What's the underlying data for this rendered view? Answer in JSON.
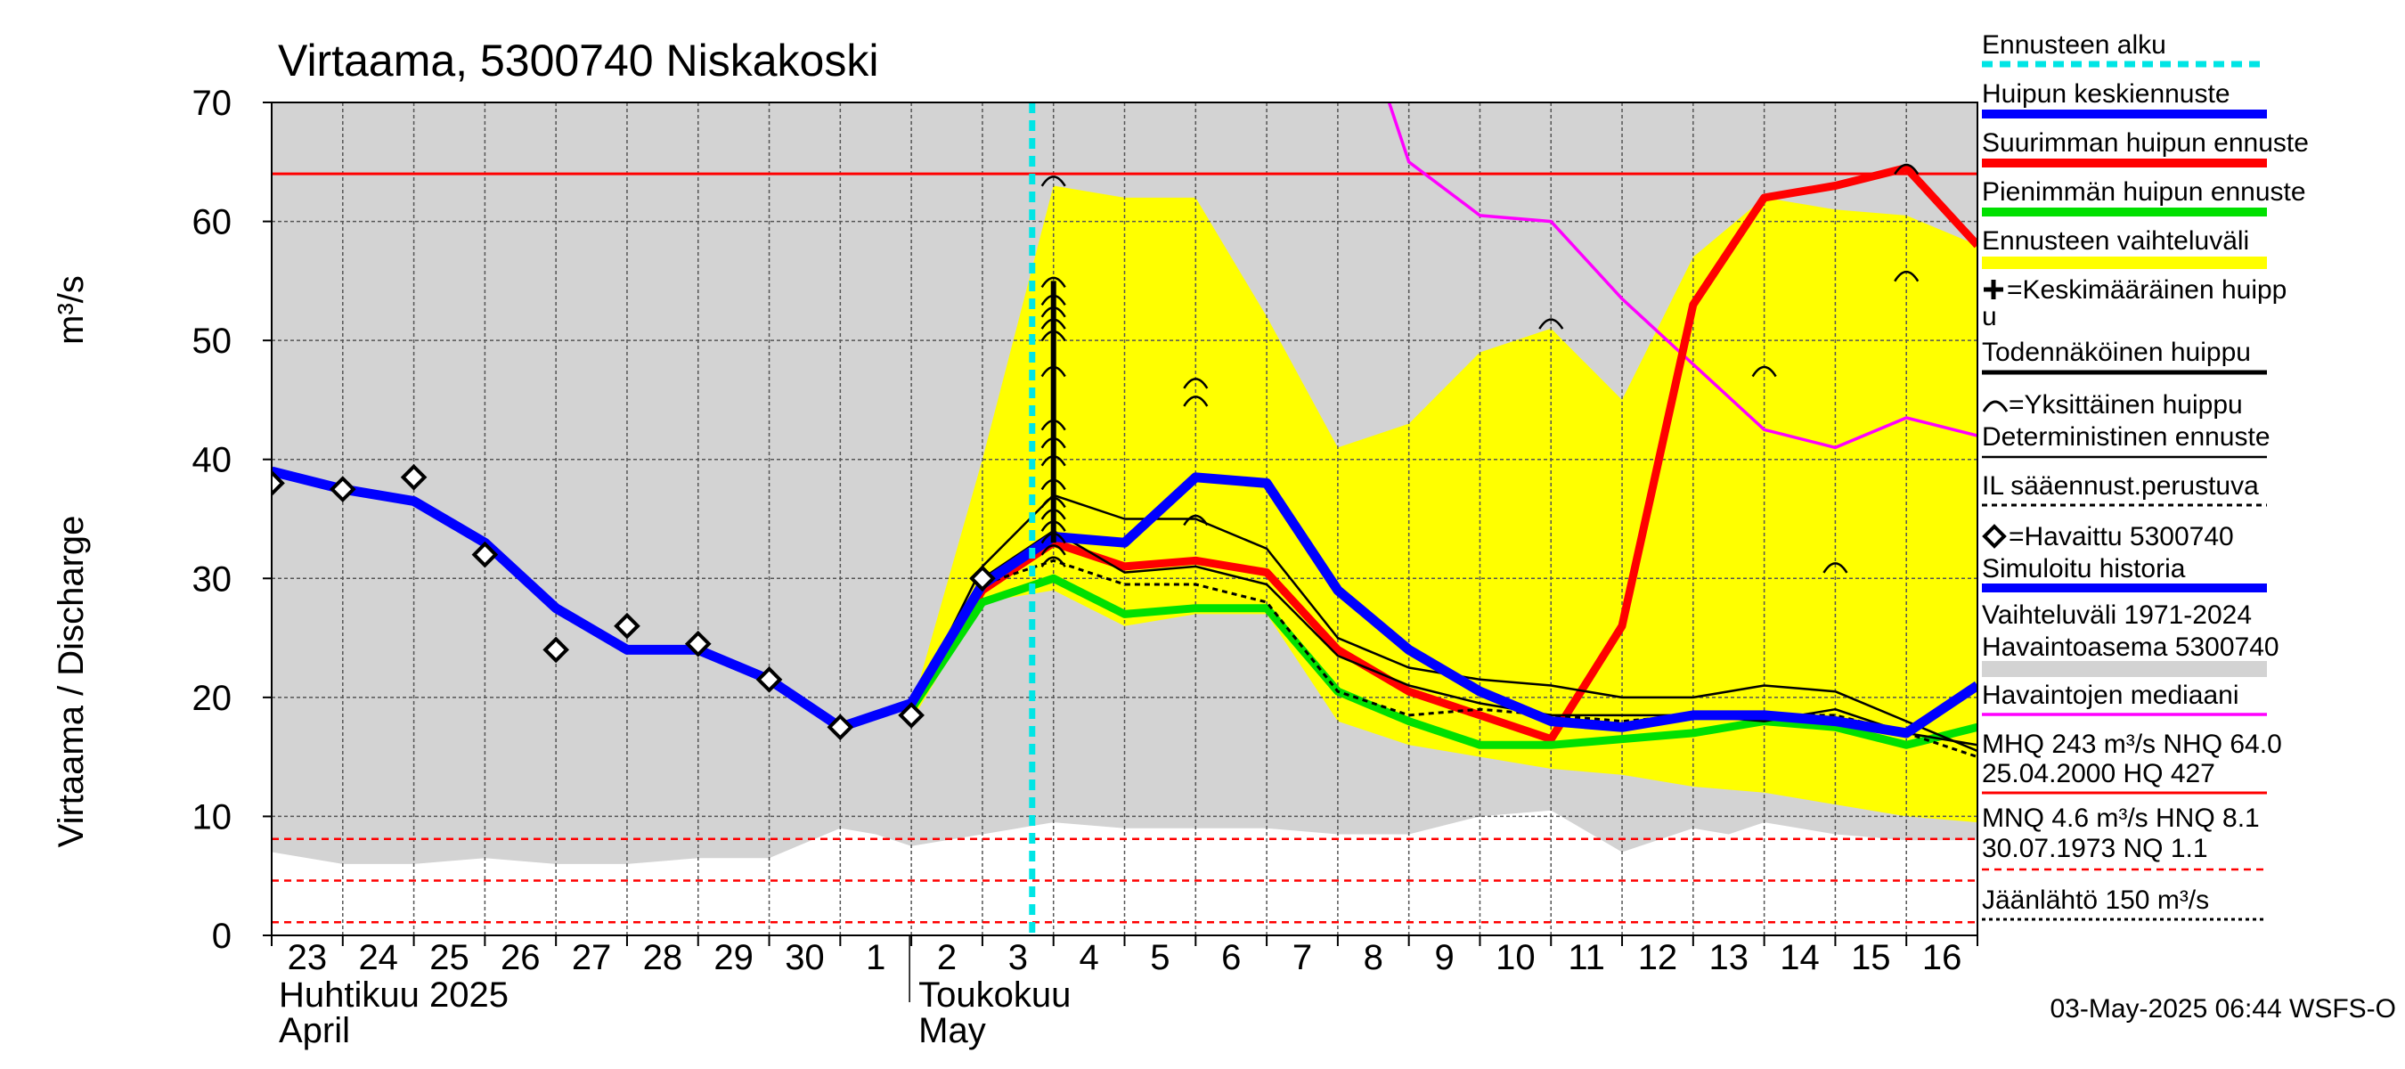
{
  "chart_data": {
    "type": "line",
    "title": "Virtaama, 5300740 Niskakoski",
    "ylabel": "Virtaama / Discharge",
    "yunit": "m³/s",
    "ylim": [
      0,
      70
    ],
    "yticks": [
      "0",
      "10",
      "20",
      "30",
      "40",
      "50",
      "60",
      "70"
    ],
    "x_start": "2025-04-23",
    "x_end": "2025-05-16",
    "xticks": [
      "23",
      "24",
      "25",
      "26",
      "27",
      "28",
      "29",
      "30",
      "1",
      "2",
      "3",
      "4",
      "5",
      "6",
      "7",
      "8",
      "9",
      "10",
      "11",
      "12",
      "13",
      "14",
      "15",
      "16"
    ],
    "month_labels": [
      {
        "fi": "Huhtikuu  2025",
        "en": "April",
        "start": 0
      },
      {
        "fi": "Toukokuu",
        "en": "May",
        "start": 9
      }
    ],
    "grid": true,
    "legend_position": "right",
    "forecast_start": 10.7,
    "colors": {
      "history_band": "#d3d3d3",
      "forecast_band": "#ffff00",
      "mean_peak": "#0000ff",
      "max_peak": "#ff0000",
      "min_peak": "#00e000",
      "median": "#ff00ff",
      "forecast_start": "#00e5e5",
      "threshold": "#ff0000"
    },
    "history_band": {
      "x": [
        0,
        1,
        2,
        3,
        4,
        5,
        6,
        7,
        8,
        8.5,
        9,
        9.5,
        10,
        11,
        12,
        13,
        14,
        15,
        16,
        17,
        18,
        19,
        20,
        20.5,
        21,
        22,
        23,
        23.5,
        24
      ],
      "lower": [
        7,
        6,
        6,
        6.5,
        6,
        6,
        6.5,
        6.5,
        9,
        8.5,
        7.5,
        8,
        8.5,
        9.5,
        9,
        9,
        9,
        8.5,
        8.5,
        10,
        10.5,
        7,
        9,
        8.5,
        9.5,
        8.5,
        8,
        8,
        8
      ]
    },
    "forecast_band": {
      "x": [
        9,
        10,
        11,
        12,
        13,
        14,
        15,
        16,
        17,
        18,
        19,
        20,
        21,
        22,
        23,
        24
      ],
      "upper": [
        19,
        40,
        63,
        62,
        62,
        52,
        41,
        43,
        49,
        51,
        45,
        57,
        62,
        61,
        60.5,
        58
      ],
      "lower": [
        18,
        28,
        29,
        26,
        27,
        27,
        18,
        16,
        15,
        14,
        13.5,
        12.5,
        12,
        11,
        10,
        9.5
      ]
    },
    "median": {
      "x": [
        15.5,
        16,
        17,
        18,
        19,
        20,
        21,
        22,
        23,
        24
      ],
      "values": [
        74,
        65,
        60.5,
        60,
        53.5,
        48,
        42.5,
        41,
        43.5,
        42
      ]
    },
    "historical_max_line": 64.0,
    "threshold_lines": [
      8.1,
      4.6,
      1.1
    ],
    "simulated_history": {
      "x": [
        0,
        1,
        2,
        3,
        4,
        5,
        6,
        7,
        8,
        9,
        10,
        11,
        12,
        13,
        14,
        15,
        16,
        17,
        18,
        19,
        20,
        21,
        22,
        23,
        24
      ],
      "values": [
        39,
        37.5,
        36.5,
        33,
        27.5,
        24,
        24,
        21.5,
        17.5,
        19.5,
        29.5,
        33.5,
        33,
        38.5,
        38,
        29,
        24,
        20.5,
        18,
        17.5,
        18.5,
        18.5,
        18,
        17,
        21
      ]
    },
    "observed": {
      "x": [
        0,
        1,
        2,
        3,
        4,
        5,
        6,
        7,
        8,
        9,
        10
      ],
      "values": [
        38,
        37.5,
        38.5,
        32,
        24,
        26,
        24.5,
        21.5,
        17.5,
        18.5,
        30
      ]
    },
    "series": [
      {
        "name": "Suurimman huipun ennuste",
        "x": [
          9,
          10,
          11,
          12,
          13,
          14,
          15,
          16,
          17,
          18,
          19,
          20,
          21,
          22,
          23,
          24
        ],
        "values": [
          19,
          29,
          33,
          31,
          31.5,
          30.5,
          24,
          20.5,
          18.5,
          16.5,
          26,
          53,
          62,
          63,
          64.5,
          58
        ]
      },
      {
        "name": "Pienimmän huipun ennuste",
        "x": [
          9,
          10,
          11,
          12,
          13,
          14,
          15,
          16,
          17,
          18,
          19,
          20,
          21,
          22,
          23,
          24
        ],
        "values": [
          19,
          28,
          30,
          27,
          27.5,
          27.5,
          20.5,
          18,
          16,
          16,
          16.5,
          17,
          18,
          17.5,
          16,
          17.5
        ]
      },
      {
        "name": "Todennäköinen huippu",
        "x": [
          9,
          10,
          11,
          12,
          13,
          14,
          15,
          16,
          17,
          18,
          19,
          20,
          21,
          22,
          23,
          24
        ],
        "values": [
          19,
          31,
          37,
          35,
          35,
          32.5,
          25,
          22.5,
          21.5,
          21,
          20,
          20,
          21,
          20.5,
          18,
          15.5
        ]
      },
      {
        "name": "Deterministinen ennuste",
        "x": [
          9,
          10,
          11,
          12,
          13,
          14,
          15,
          16,
          17,
          18,
          19,
          20,
          21,
          22,
          23,
          24
        ],
        "values": [
          19,
          30,
          34,
          30.5,
          31,
          29.5,
          23.5,
          21,
          19.5,
          18.5,
          18.5,
          18.5,
          18,
          19,
          17,
          16
        ]
      },
      {
        "name": "IL sääennust.perustuva",
        "x": [
          9,
          10,
          11,
          12,
          13,
          14,
          15,
          16,
          17,
          18,
          19,
          20,
          21,
          22,
          23,
          24
        ],
        "values": [
          19,
          29.5,
          31.5,
          29.5,
          29.5,
          28,
          20.5,
          18.5,
          19,
          18.5,
          18,
          18.5,
          18.5,
          18.5,
          17,
          15
        ]
      }
    ],
    "individual_peaks": [
      {
        "x": 11,
        "values": [
          31.5,
          32.5,
          33.5,
          34.5,
          35.5,
          36.5,
          38,
          40,
          41.5,
          43,
          47.5,
          50.5,
          51.5,
          52.5,
          53.5,
          55,
          63.5
        ]
      },
      {
        "x": 13,
        "values": [
          35,
          45,
          46.5
        ]
      },
      {
        "x": 18,
        "values": [
          51.5
        ]
      },
      {
        "x": 21,
        "values": [
          47.5
        ]
      },
      {
        "x": 22,
        "values": [
          31
        ]
      },
      {
        "x": 23,
        "values": [
          55.5,
          64.5
        ]
      }
    ],
    "mean_peak_marks": {
      "x": 11,
      "from": 33,
      "to": 55
    }
  },
  "legend": [
    "Ennusteen alku",
    "Huipun keskiennuste",
    "Suurimman huipun ennuste",
    "Pienimmän huipun ennuste",
    "Ennusteen vaihteluväli",
    "=Keskimääräinen huipp",
    "u",
    "Todennäköinen huippu",
    "=Yksittäinen huippu",
    "Deterministinen ennuste",
    "IL sääennust.perustuva",
    "=Havaittu 5300740",
    "Simuloitu historia",
    "Vaihteluväli 1971-2024",
    " Havaintoasema 5300740",
    "Havaintojen mediaani",
    "MHQ  243 m³/s NHQ 64.0",
    "25.04.2000 HQ  427",
    "MNQ  4.6 m³/s HNQ  8.1",
    "30.07.1973 NQ  1.1",
    "Jäänlähtö 150 m³/s"
  ],
  "footer": "03-May-2025 06:44 WSFS-O"
}
